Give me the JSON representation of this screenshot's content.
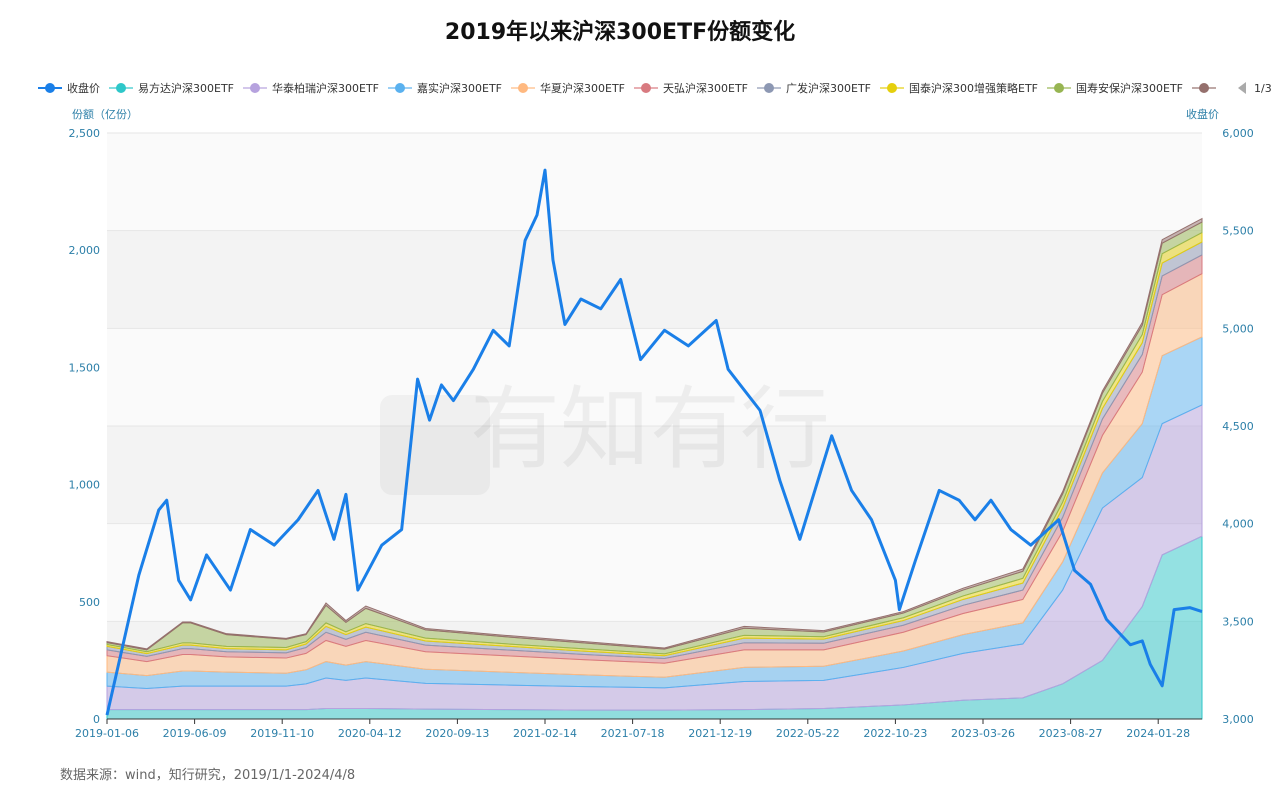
{
  "title": "2019年以来沪深300ETF份额变化",
  "footer": "数据来源：wind，知行研究，2019/1/1-2024/4/8",
  "watermark": "有知有行",
  "legend_page": "1/3",
  "chart_data": {
    "type": "area",
    "title": "2019年以来沪深300ETF份额变化",
    "ylabel": "份额（亿份）",
    "ylabel_right": "收盘价",
    "ylim": [
      0,
      2500
    ],
    "ylim_right": [
      3000,
      6000
    ],
    "yticks": [
      "0",
      "500",
      "1,000",
      "1,500",
      "2,000",
      "2,500"
    ],
    "yticks_right": [
      "3,000",
      "3,500",
      "4,000",
      "4,500",
      "5,000",
      "5,500",
      "6,000"
    ],
    "x_unit": "week index from 2019-01-06",
    "x_range": [
      0,
      275
    ],
    "xticks": [
      {
        "w": 0,
        "label": "2019-01-06"
      },
      {
        "w": 22,
        "label": "2019-06-09"
      },
      {
        "w": 44,
        "label": "2019-11-10"
      },
      {
        "w": 66,
        "label": "2020-04-12"
      },
      {
        "w": 88,
        "label": "2020-09-13"
      },
      {
        "w": 110,
        "label": "2021-02-14"
      },
      {
        "w": 132,
        "label": "2021-07-18"
      },
      {
        "w": 154,
        "label": "2021-12-19"
      },
      {
        "w": 176,
        "label": "2022-05-22"
      },
      {
        "w": 198,
        "label": "2022-10-23"
      },
      {
        "w": 220,
        "label": "2023-03-26"
      },
      {
        "w": 242,
        "label": "2023-08-27"
      },
      {
        "w": 264,
        "label": "2024-01-28"
      }
    ],
    "area_weeks": [
      0,
      10,
      19,
      21,
      30,
      45,
      50,
      55,
      60,
      65,
      80,
      100,
      120,
      140,
      160,
      180,
      200,
      215,
      230,
      240,
      250,
      260,
      265,
      275
    ],
    "series": [
      {
        "name": "易方达沪深300ETF",
        "color": "#2ec7c9",
        "values": [
          40,
          40,
          40,
          40,
          40,
          40,
          40,
          45,
          45,
          45,
          42,
          40,
          38,
          38,
          40,
          45,
          60,
          80,
          90,
          150,
          250,
          480,
          700,
          780
        ]
      },
      {
        "name": "华泰柏瑞沪深300ETF",
        "color": "#b6a2de",
        "values": [
          100,
          90,
          100,
          100,
          100,
          100,
          110,
          130,
          120,
          130,
          110,
          105,
          100,
          95,
          120,
          120,
          160,
          200,
          230,
          400,
          650,
          550,
          560,
          560
        ]
      },
      {
        "name": "嘉实沪深300ETF",
        "color": "#5ab1ef",
        "values": [
          60,
          55,
          65,
          65,
          60,
          55,
          60,
          70,
          65,
          70,
          60,
          55,
          50,
          45,
          60,
          60,
          70,
          80,
          90,
          120,
          150,
          230,
          290,
          290
        ]
      },
      {
        "name": "华夏沪深300ETF",
        "color": "#ffb980",
        "values": [
          70,
          60,
          70,
          70,
          65,
          65,
          70,
          90,
          80,
          90,
          75,
          70,
          65,
          60,
          75,
          70,
          80,
          90,
          100,
          130,
          160,
          220,
          260,
          270
        ]
      },
      {
        "name": "天弘沪深300ETF",
        "color": "#d87a80",
        "values": [
          25,
          22,
          25,
          25,
          22,
          22,
          25,
          35,
          30,
          35,
          28,
          25,
          22,
          20,
          30,
          28,
          30,
          35,
          40,
          60,
          70,
          75,
          80,
          80
        ]
      },
      {
        "name": "广发沪深300ETF",
        "color": "#8d98b3",
        "values": [
          15,
          12,
          15,
          15,
          13,
          13,
          15,
          25,
          20,
          22,
          18,
          16,
          14,
          12,
          20,
          18,
          20,
          25,
          30,
          40,
          45,
          50,
          55,
          55
        ]
      },
      {
        "name": "国泰沪深300增强策略ETF",
        "color": "#e5cf0d",
        "values": [
          8,
          8,
          10,
          10,
          10,
          10,
          10,
          15,
          12,
          15,
          12,
          10,
          10,
          8,
          12,
          10,
          12,
          15,
          20,
          25,
          30,
          35,
          40,
          40
        ]
      },
      {
        "name": "国寿安保沪深300ETF",
        "color": "#97b552",
        "values": [
          8,
          8,
          85,
          85,
          50,
          35,
          30,
          75,
          40,
          65,
          35,
          30,
          25,
          20,
          30,
          20,
          20,
          25,
          30,
          35,
          35,
          40,
          45,
          45
        ]
      },
      {
        "name": "",
        "color": "#95706d",
        "values": [
          4,
          4,
          4,
          4,
          4,
          4,
          4,
          10,
          8,
          10,
          6,
          6,
          6,
          5,
          8,
          6,
          6,
          8,
          10,
          10,
          10,
          12,
          15,
          15
        ]
      }
    ],
    "price": {
      "name": "收盘价",
      "color": "#1a7fe8",
      "points": [
        [
          0,
          3020
        ],
        [
          8,
          3737
        ],
        [
          13,
          4070
        ],
        [
          15,
          4120
        ],
        [
          18,
          3710
        ],
        [
          21,
          3610
        ],
        [
          25,
          3840
        ],
        [
          31,
          3660
        ],
        [
          36,
          3970
        ],
        [
          42,
          3890
        ],
        [
          48,
          4020
        ],
        [
          53,
          4170
        ],
        [
          57,
          3920
        ],
        [
          60,
          4150
        ],
        [
          63,
          3660
        ],
        [
          69,
          3890
        ],
        [
          74,
          3970
        ],
        [
          78,
          4740
        ],
        [
          81,
          4530
        ],
        [
          84,
          4710
        ],
        [
          87,
          4630
        ],
        [
          92,
          4790
        ],
        [
          97,
          4990
        ],
        [
          101,
          4910
        ],
        [
          105,
          5450
        ],
        [
          108,
          5580
        ],
        [
          110,
          5810
        ],
        [
          112,
          5350
        ],
        [
          115,
          5020
        ],
        [
          119,
          5150
        ],
        [
          124,
          5100
        ],
        [
          129,
          5250
        ],
        [
          134,
          4840
        ],
        [
          140,
          4990
        ],
        [
          146,
          4910
        ],
        [
          153,
          5040
        ],
        [
          156,
          4790
        ],
        [
          164,
          4580
        ],
        [
          169,
          4220
        ],
        [
          174,
          3920
        ],
        [
          182,
          4450
        ],
        [
          187,
          4170
        ],
        [
          192,
          4020
        ],
        [
          198,
          3710
        ],
        [
          199,
          3560
        ],
        [
          203,
          3810
        ],
        [
          209,
          4170
        ],
        [
          214,
          4120
        ],
        [
          218,
          4020
        ],
        [
          222,
          4120
        ],
        [
          227,
          3970
        ],
        [
          232,
          3890
        ],
        [
          239,
          4020
        ],
        [
          243,
          3760
        ],
        [
          247,
          3690
        ],
        [
          251,
          3510
        ],
        [
          257,
          3380
        ],
        [
          260,
          3400
        ],
        [
          262,
          3280
        ],
        [
          265,
          3170
        ],
        [
          268,
          3560
        ],
        [
          272,
          3570
        ],
        [
          275,
          3550
        ]
      ]
    }
  }
}
